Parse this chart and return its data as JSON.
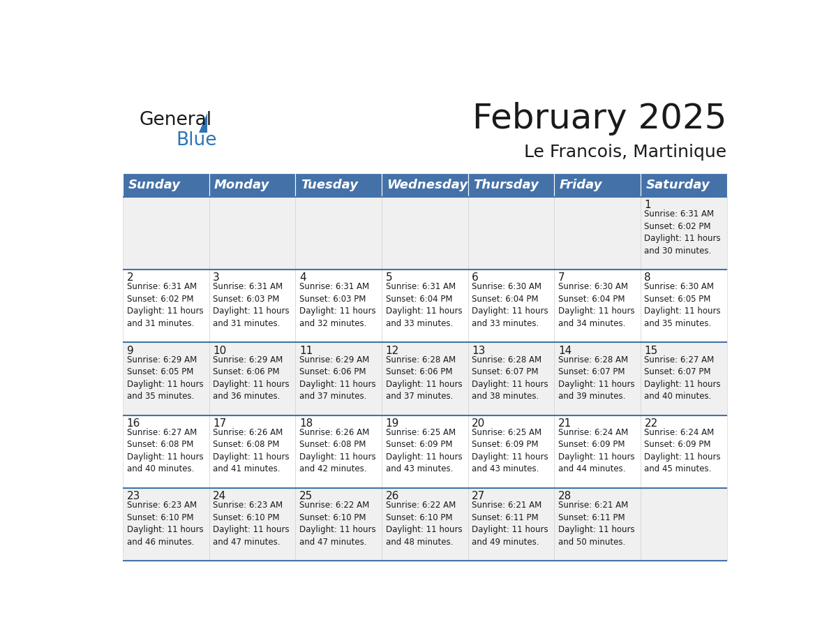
{
  "title": "February 2025",
  "subtitle": "Le Francois, Martinique",
  "header_color": "#4472a8",
  "header_text_color": "#ffffff",
  "day_names": [
    "Sunday",
    "Monday",
    "Tuesday",
    "Wednesday",
    "Thursday",
    "Friday",
    "Saturday"
  ],
  "title_fontsize": 36,
  "subtitle_fontsize": 18,
  "header_fontsize": 13,
  "day_num_fontsize": 11,
  "cell_fontsize": 8.5,
  "calendar_data": [
    [
      {
        "day": 0,
        "info": ""
      },
      {
        "day": 0,
        "info": ""
      },
      {
        "day": 0,
        "info": ""
      },
      {
        "day": 0,
        "info": ""
      },
      {
        "day": 0,
        "info": ""
      },
      {
        "day": 0,
        "info": ""
      },
      {
        "day": 1,
        "info": "Sunrise: 6:31 AM\nSunset: 6:02 PM\nDaylight: 11 hours\nand 30 minutes."
      }
    ],
    [
      {
        "day": 2,
        "info": "Sunrise: 6:31 AM\nSunset: 6:02 PM\nDaylight: 11 hours\nand 31 minutes."
      },
      {
        "day": 3,
        "info": "Sunrise: 6:31 AM\nSunset: 6:03 PM\nDaylight: 11 hours\nand 31 minutes."
      },
      {
        "day": 4,
        "info": "Sunrise: 6:31 AM\nSunset: 6:03 PM\nDaylight: 11 hours\nand 32 minutes."
      },
      {
        "day": 5,
        "info": "Sunrise: 6:31 AM\nSunset: 6:04 PM\nDaylight: 11 hours\nand 33 minutes."
      },
      {
        "day": 6,
        "info": "Sunrise: 6:30 AM\nSunset: 6:04 PM\nDaylight: 11 hours\nand 33 minutes."
      },
      {
        "day": 7,
        "info": "Sunrise: 6:30 AM\nSunset: 6:04 PM\nDaylight: 11 hours\nand 34 minutes."
      },
      {
        "day": 8,
        "info": "Sunrise: 6:30 AM\nSunset: 6:05 PM\nDaylight: 11 hours\nand 35 minutes."
      }
    ],
    [
      {
        "day": 9,
        "info": "Sunrise: 6:29 AM\nSunset: 6:05 PM\nDaylight: 11 hours\nand 35 minutes."
      },
      {
        "day": 10,
        "info": "Sunrise: 6:29 AM\nSunset: 6:06 PM\nDaylight: 11 hours\nand 36 minutes."
      },
      {
        "day": 11,
        "info": "Sunrise: 6:29 AM\nSunset: 6:06 PM\nDaylight: 11 hours\nand 37 minutes."
      },
      {
        "day": 12,
        "info": "Sunrise: 6:28 AM\nSunset: 6:06 PM\nDaylight: 11 hours\nand 37 minutes."
      },
      {
        "day": 13,
        "info": "Sunrise: 6:28 AM\nSunset: 6:07 PM\nDaylight: 11 hours\nand 38 minutes."
      },
      {
        "day": 14,
        "info": "Sunrise: 6:28 AM\nSunset: 6:07 PM\nDaylight: 11 hours\nand 39 minutes."
      },
      {
        "day": 15,
        "info": "Sunrise: 6:27 AM\nSunset: 6:07 PM\nDaylight: 11 hours\nand 40 minutes."
      }
    ],
    [
      {
        "day": 16,
        "info": "Sunrise: 6:27 AM\nSunset: 6:08 PM\nDaylight: 11 hours\nand 40 minutes."
      },
      {
        "day": 17,
        "info": "Sunrise: 6:26 AM\nSunset: 6:08 PM\nDaylight: 11 hours\nand 41 minutes."
      },
      {
        "day": 18,
        "info": "Sunrise: 6:26 AM\nSunset: 6:08 PM\nDaylight: 11 hours\nand 42 minutes."
      },
      {
        "day": 19,
        "info": "Sunrise: 6:25 AM\nSunset: 6:09 PM\nDaylight: 11 hours\nand 43 minutes."
      },
      {
        "day": 20,
        "info": "Sunrise: 6:25 AM\nSunset: 6:09 PM\nDaylight: 11 hours\nand 43 minutes."
      },
      {
        "day": 21,
        "info": "Sunrise: 6:24 AM\nSunset: 6:09 PM\nDaylight: 11 hours\nand 44 minutes."
      },
      {
        "day": 22,
        "info": "Sunrise: 6:24 AM\nSunset: 6:09 PM\nDaylight: 11 hours\nand 45 minutes."
      }
    ],
    [
      {
        "day": 23,
        "info": "Sunrise: 6:23 AM\nSunset: 6:10 PM\nDaylight: 11 hours\nand 46 minutes."
      },
      {
        "day": 24,
        "info": "Sunrise: 6:23 AM\nSunset: 6:10 PM\nDaylight: 11 hours\nand 47 minutes."
      },
      {
        "day": 25,
        "info": "Sunrise: 6:22 AM\nSunset: 6:10 PM\nDaylight: 11 hours\nand 47 minutes."
      },
      {
        "day": 26,
        "info": "Sunrise: 6:22 AM\nSunset: 6:10 PM\nDaylight: 11 hours\nand 48 minutes."
      },
      {
        "day": 27,
        "info": "Sunrise: 6:21 AM\nSunset: 6:11 PM\nDaylight: 11 hours\nand 49 minutes."
      },
      {
        "day": 28,
        "info": "Sunrise: 6:21 AM\nSunset: 6:11 PM\nDaylight: 11 hours\nand 50 minutes."
      },
      {
        "day": 0,
        "info": ""
      }
    ]
  ]
}
